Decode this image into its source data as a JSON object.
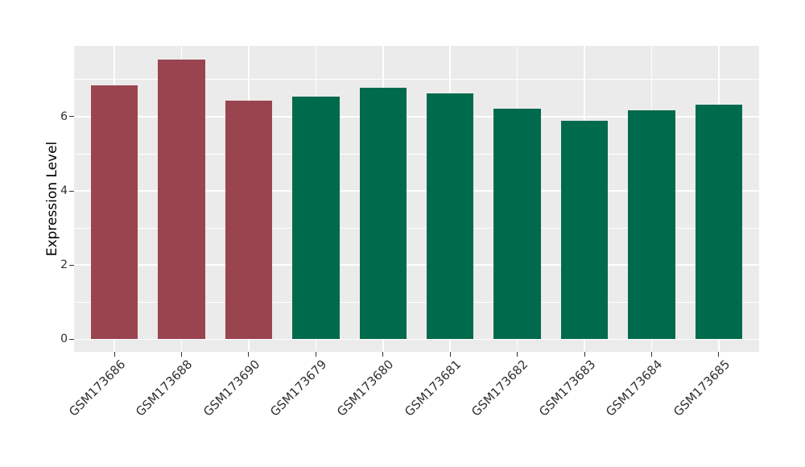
{
  "chart_data": {
    "type": "bar",
    "title": "",
    "xlabel": "",
    "ylabel": "Expression Level",
    "categories": [
      "GSM173686",
      "GSM173688",
      "GSM173690",
      "GSM173679",
      "GSM173680",
      "GSM173681",
      "GSM173682",
      "GSM173683",
      "GSM173684",
      "GSM173685"
    ],
    "values": [
      6.84,
      7.54,
      6.43,
      6.54,
      6.79,
      6.63,
      6.21,
      5.9,
      6.17,
      6.32
    ],
    "bar_colors": [
      "#9A4450",
      "#9A4450",
      "#9A4450",
      "#006A4C",
      "#006A4C",
      "#006A4C",
      "#006A4C",
      "#006A4C",
      "#006A4C",
      "#006A4C"
    ],
    "group_colors": {
      "highlight": "#9A4450",
      "normal": "#006A4C"
    },
    "yticks": [
      0,
      2,
      4,
      6
    ],
    "yticks_minor": [
      1,
      3,
      5,
      7
    ],
    "ylim": [
      -0.34,
      7.91
    ],
    "grid": true,
    "legend": false,
    "panel_bg": "#EBEBEB",
    "grid_color": "#FFFFFF",
    "tick_color": "#333333",
    "tick_label_color": "#303030"
  }
}
